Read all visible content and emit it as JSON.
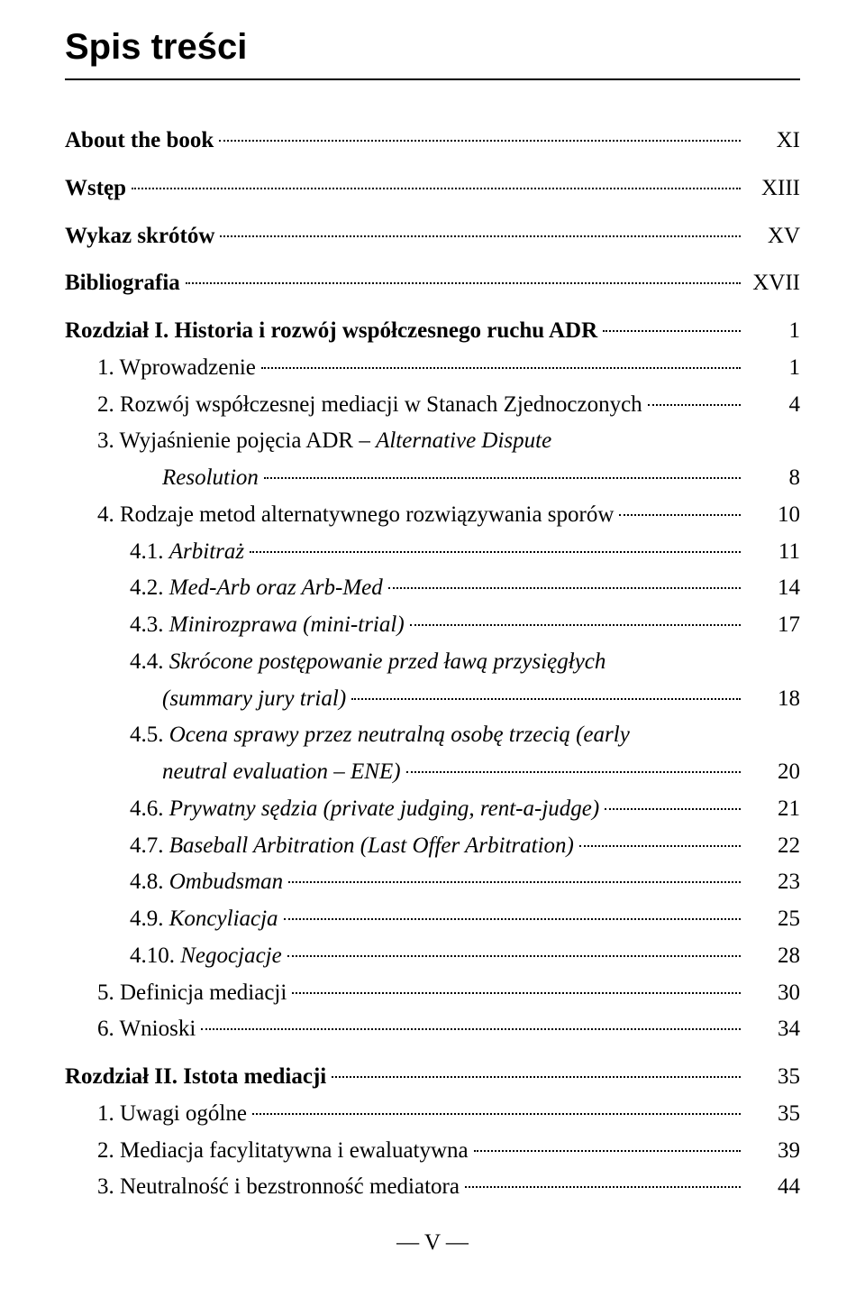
{
  "title": "Spis treści",
  "entries": [
    {
      "type": "row",
      "label": "About the book",
      "page": "XI",
      "indent": "",
      "bold": true
    },
    {
      "type": "row",
      "label": "Wstęp",
      "page": "XIII",
      "indent": "",
      "bold": true,
      "gap": true
    },
    {
      "type": "row",
      "label": "Wykaz skrótów",
      "page": "XV",
      "indent": "",
      "bold": true,
      "gap": true
    },
    {
      "type": "row",
      "label": "Bibliografia",
      "page": "XVII",
      "indent": "",
      "bold": true,
      "gap": true
    },
    {
      "type": "row",
      "label": "Rozdział I. Historia i rozwój współczesnego ruchu ADR",
      "page": "1",
      "indent": "",
      "bold": true,
      "gap": true
    },
    {
      "type": "row",
      "label": "1. Wprowadzenie",
      "page": "1",
      "indent": "i1"
    },
    {
      "type": "row",
      "label": "2. Rozwój współczesnej mediacji w Stanach Zjednoczonych",
      "page": "4",
      "indent": "i1"
    },
    {
      "type": "wrap",
      "line1": "3. Wyjaśnienie pojęcia ADR – ",
      "line1_italic": "Alternative Dispute",
      "line2_italic": "Resolution",
      "page": "8",
      "indent": "i1",
      "cont_indent": "i2c"
    },
    {
      "type": "row",
      "label": "4. Rodzaje metod alternatywnego rozwiązywania sporów",
      "page": "10",
      "indent": "i1"
    },
    {
      "type": "mixed",
      "parts": [
        {
          "t": "4.1. ",
          "i": false
        },
        {
          "t": "Arbitraż",
          "i": true
        }
      ],
      "page": "11",
      "indent": "i2"
    },
    {
      "type": "mixed",
      "parts": [
        {
          "t": "4.2. ",
          "i": false
        },
        {
          "t": "Med-Arb oraz Arb-Med",
          "i": true
        }
      ],
      "page": "14",
      "indent": "i2"
    },
    {
      "type": "mixed",
      "parts": [
        {
          "t": "4.3. ",
          "i": false
        },
        {
          "t": "Minirozprawa (mini-trial)",
          "i": true
        }
      ],
      "page": "17",
      "indent": "i2"
    },
    {
      "type": "wrap",
      "line1": "4.4. ",
      "line1_italic": "Skrócone postępowanie przed ławą przysięgłych",
      "line2_italic": "(summary jury trial)",
      "page": "18",
      "indent": "i2",
      "cont_indent": "i2c"
    },
    {
      "type": "wrap",
      "line1": "4.5. ",
      "line1_italic": "Ocena sprawy przez neutralną osobę trzecią (early",
      "line2_italic": "neutral evaluation – ENE)",
      "page": "20",
      "indent": "i2",
      "cont_indent": "i2c"
    },
    {
      "type": "mixed",
      "parts": [
        {
          "t": "4.6. ",
          "i": false
        },
        {
          "t": "Prywatny sędzia (private judging, rent-a-judge)",
          "i": true
        }
      ],
      "page": "21",
      "indent": "i2"
    },
    {
      "type": "mixed",
      "parts": [
        {
          "t": "4.7. ",
          "i": false
        },
        {
          "t": "Baseball Arbitration (Last Offer Arbitration)",
          "i": true
        }
      ],
      "page": "22",
      "indent": "i2"
    },
    {
      "type": "mixed",
      "parts": [
        {
          "t": "4.8. ",
          "i": false
        },
        {
          "t": "Ombudsman",
          "i": true
        }
      ],
      "page": "23",
      "indent": "i2"
    },
    {
      "type": "mixed",
      "parts": [
        {
          "t": "4.9. ",
          "i": false
        },
        {
          "t": "Koncyliacja",
          "i": true
        }
      ],
      "page": "25",
      "indent": "i2"
    },
    {
      "type": "mixed",
      "parts": [
        {
          "t": "4.10. ",
          "i": false
        },
        {
          "t": "Negocjacje",
          "i": true
        }
      ],
      "page": "28",
      "indent": "i2"
    },
    {
      "type": "row",
      "label": "5. Definicja mediacji",
      "page": "30",
      "indent": "i1"
    },
    {
      "type": "row",
      "label": "6. Wnioski",
      "page": "34",
      "indent": "i1"
    },
    {
      "type": "row",
      "label": "Rozdział II. Istota mediacji",
      "page": "35",
      "indent": "",
      "bold": true,
      "gap": true
    },
    {
      "type": "row",
      "label": "1. Uwagi ogólne",
      "page": "35",
      "indent": "i1"
    },
    {
      "type": "row",
      "label": "2. Mediacja facylitatywna i ewaluatywna",
      "page": "39",
      "indent": "i1"
    },
    {
      "type": "row",
      "label": "3. Neutralność i bezstronność mediatora",
      "page": "44",
      "indent": "i1"
    }
  ],
  "footer": "— V —"
}
